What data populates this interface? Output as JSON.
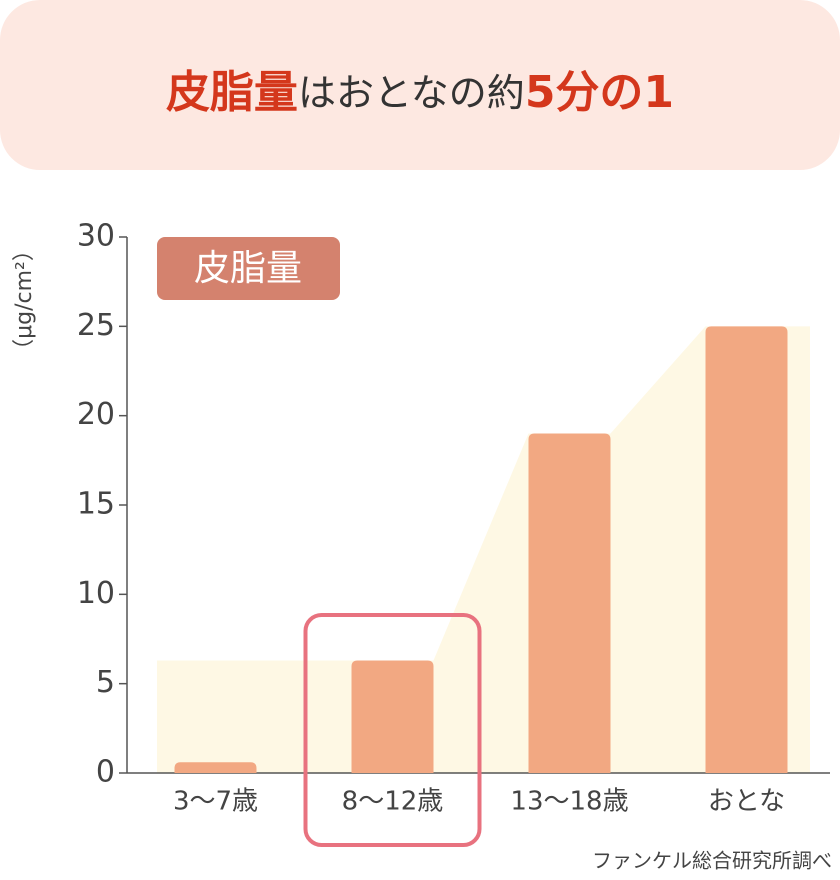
{
  "chart_data": {
    "type": "bar",
    "title": [
      "皮脂量",
      "はおとなの約",
      "5分の1"
    ],
    "y_label": "（μg/cm²）",
    "legend": "皮脂量",
    "source": "ファンケル総合研究所調べ",
    "categories": [
      "3〜7歳",
      "8〜12歳",
      "13〜18歳",
      "おとな"
    ],
    "values": [
      0.6,
      6.3,
      19,
      25
    ],
    "color": "#f2a882",
    "highlight_index": 1,
    "ylim": [
      0,
      30
    ],
    "yticks": [
      0,
      5,
      10,
      15,
      20,
      25,
      30
    ]
  }
}
